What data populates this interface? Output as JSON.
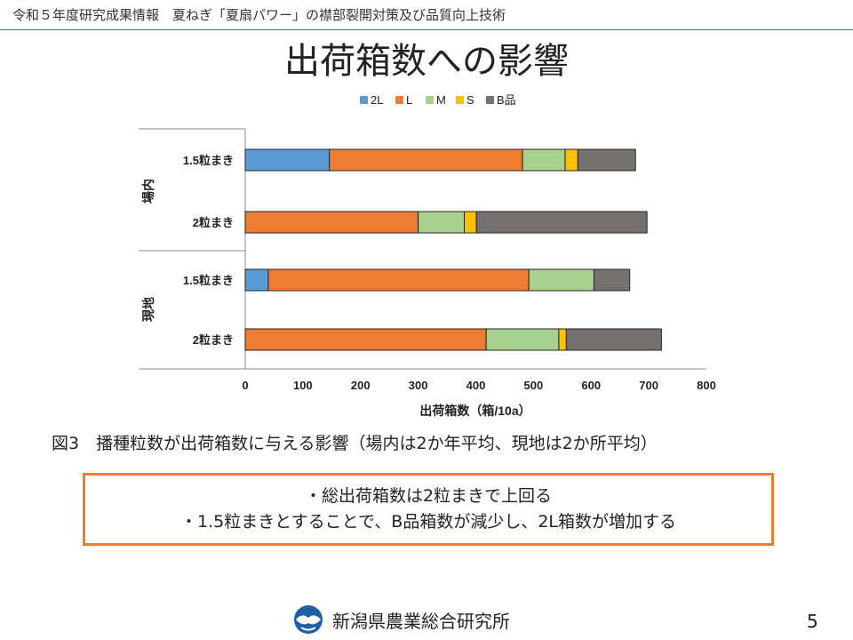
{
  "header": {
    "text": "令和５年度研究成果情報　夏ねぎ「夏扇パワー」の襟部裂開対策及び品質向上技術"
  },
  "slide": {
    "title": "出荷箱数への影響",
    "page_number": "5"
  },
  "chart_data": {
    "type": "bar",
    "orientation": "horizontal",
    "stacked": true,
    "legend_position": "top",
    "xlabel": "出荷箱数（箱/10a）",
    "xlim": [
      0,
      800
    ],
    "xticks": [
      0,
      100,
      200,
      300,
      400,
      500,
      600,
      700,
      800
    ],
    "grid": false,
    "groups": [
      {
        "label": "場内",
        "categories": [
          "1.5粒まき",
          "2粒まき"
        ]
      },
      {
        "label": "現地",
        "categories": [
          "1.5粒まき",
          "2粒まき"
        ]
      }
    ],
    "categories": [
      "場内 1.5粒まき",
      "場内 2粒まき",
      "現地 1.5粒まき",
      "現地 2粒まき"
    ],
    "series": [
      {
        "name": "2L",
        "color": "#5b9bd5",
        "values": [
          146,
          0,
          40,
          0
        ]
      },
      {
        "name": "L",
        "color": "#ed7d31",
        "values": [
          335,
          300,
          452,
          418
        ]
      },
      {
        "name": "M",
        "color": "#a9d18e",
        "values": [
          74,
          80,
          113,
          126
        ]
      },
      {
        "name": "S",
        "color": "#ffc000",
        "values": [
          22,
          21,
          0,
          13
        ]
      },
      {
        "name": "B品",
        "color": "#767171",
        "values": [
          100,
          296,
          62,
          165
        ]
      }
    ]
  },
  "caption": {
    "text": "図3　播種粒数が出荷箱数に与える影響（場内は2か年平均、現地は2か所平均）"
  },
  "summary": {
    "lines": [
      "・総出荷箱数は2粒まきで上回る",
      "・1.5粒まきとすることで、B品箱数が減少し、2L箱数が増加する"
    ]
  },
  "footer": {
    "org_name": "新潟県農業総合研究所"
  }
}
